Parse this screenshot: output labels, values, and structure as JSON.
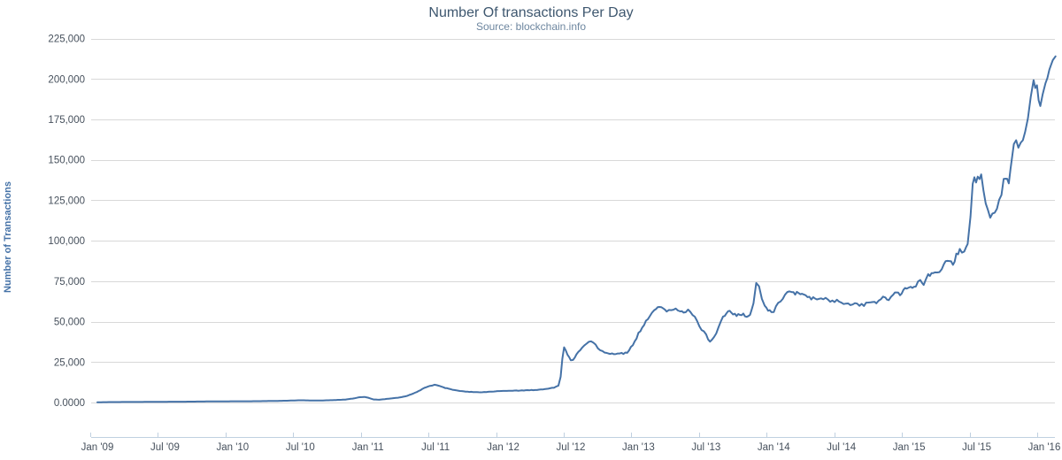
{
  "colors": {
    "background": "#FFFFFF",
    "title": "#3E576F",
    "subtitle": "#6D869F",
    "axis_labels": "#46505C",
    "y_axis_title": "#4572A7",
    "grid_line": "#D8D8D8",
    "axis_line": "#C0D0E0",
    "series_line": "#4572A7"
  },
  "chart_data": {
    "type": "line",
    "title": "Number Of transactions Per Day",
    "subtitle": "Source: blockchain.info",
    "xlabel": "",
    "ylabel": "Number of Transactions",
    "x_unit": "months since Jan 2009",
    "x_tick_labels": [
      "Jan '09",
      "Jul '09",
      "Jan '10",
      "Jul '10",
      "Jan '11",
      "Jul '11",
      "Jan '12",
      "Jul '12",
      "Jan '13",
      "Jul '13",
      "Jan '14",
      "Jul '14",
      "Jan '15",
      "Jul '15",
      "Jan '16"
    ],
    "x_tick_months": [
      0,
      6,
      12,
      18,
      24,
      30,
      36,
      42,
      48,
      54,
      60,
      66,
      72,
      78,
      84
    ],
    "y_ticks": [
      0,
      25000,
      50000,
      75000,
      100000,
      125000,
      150000,
      175000,
      200000,
      225000
    ],
    "y_tick_labels": [
      "0.0000",
      "25,000",
      "50,000",
      "75,000",
      "100,000",
      "125,000",
      "150,000",
      "175,000",
      "200,000",
      "225,000"
    ],
    "ylim": [
      0,
      225000
    ],
    "grid": "horizontal-only",
    "legend": "none",
    "series": [
      {
        "name": "Number of transactions per day",
        "color": "#4572A7",
        "points": [
          [
            0,
            150
          ],
          [
            1,
            250
          ],
          [
            2,
            300
          ],
          [
            3,
            320
          ],
          [
            4,
            350
          ],
          [
            5,
            400
          ],
          [
            6,
            450
          ],
          [
            7,
            500
          ],
          [
            8,
            520
          ],
          [
            9,
            600
          ],
          [
            10,
            650
          ],
          [
            11,
            700
          ],
          [
            12,
            750
          ],
          [
            13,
            760
          ],
          [
            14,
            800
          ],
          [
            15,
            900
          ],
          [
            16,
            1000
          ],
          [
            17,
            1150
          ],
          [
            18,
            1400
          ],
          [
            19,
            1250
          ],
          [
            20,
            1250
          ],
          [
            21,
            1500
          ],
          [
            22,
            1800
          ],
          [
            22.8,
            2600
          ],
          [
            23.3,
            3300
          ],
          [
            23.7,
            3400
          ],
          [
            24,
            3000
          ],
          [
            24.5,
            1900
          ],
          [
            25,
            1700
          ],
          [
            25.5,
            2100
          ],
          [
            26,
            2500
          ],
          [
            26.5,
            2800
          ],
          [
            27,
            3300
          ],
          [
            27.5,
            4200
          ],
          [
            28,
            5500
          ],
          [
            28.5,
            7000
          ],
          [
            29,
            9000
          ],
          [
            29.5,
            10300
          ],
          [
            29.9,
            10900
          ],
          [
            30.3,
            10300
          ],
          [
            30.7,
            9300
          ],
          [
            31,
            8800
          ],
          [
            31.5,
            8000
          ],
          [
            32,
            7400
          ],
          [
            32.5,
            6900
          ],
          [
            33,
            6600
          ],
          [
            33.5,
            6400
          ],
          [
            34,
            6300
          ],
          [
            34.5,
            6500
          ],
          [
            35,
            6800
          ],
          [
            35.5,
            7000
          ],
          [
            36,
            7100
          ],
          [
            36.5,
            7200
          ],
          [
            37,
            7300
          ],
          [
            37.5,
            7400
          ],
          [
            38,
            7500
          ],
          [
            38.5,
            7650
          ],
          [
            39,
            7800
          ],
          [
            39.5,
            8100
          ],
          [
            40,
            8500
          ],
          [
            40.5,
            9200
          ],
          [
            40.9,
            10500
          ],
          [
            41.1,
            16000
          ],
          [
            41.25,
            27000
          ],
          [
            41.4,
            34500
          ],
          [
            41.7,
            30000
          ],
          [
            42,
            26500
          ],
          [
            42.2,
            26000
          ],
          [
            42.5,
            29500
          ],
          [
            43,
            33500
          ],
          [
            43.4,
            36500
          ],
          [
            43.8,
            38000
          ],
          [
            44.2,
            35500
          ],
          [
            44.6,
            32500
          ],
          [
            45,
            31000
          ],
          [
            45.5,
            30000
          ],
          [
            46,
            29800
          ],
          [
            46.5,
            30300
          ],
          [
            47,
            30800
          ],
          [
            47.5,
            35500
          ],
          [
            48,
            42500
          ],
          [
            48.5,
            48500
          ],
          [
            49,
            53500
          ],
          [
            49.4,
            57500
          ],
          [
            49.85,
            60000
          ],
          [
            50.2,
            58200
          ],
          [
            50.5,
            55500
          ],
          [
            50.9,
            57200
          ],
          [
            51.3,
            58000
          ],
          [
            51.7,
            57000
          ],
          [
            52,
            56200
          ],
          [
            52.4,
            56800
          ],
          [
            52.8,
            54500
          ],
          [
            53.2,
            50000
          ],
          [
            53.6,
            45500
          ],
          [
            54,
            41500
          ],
          [
            54.35,
            37500
          ],
          [
            54.7,
            40000
          ],
          [
            55.1,
            46500
          ],
          [
            55.5,
            52500
          ],
          [
            55.8,
            55800
          ],
          [
            56.1,
            56300
          ],
          [
            56.4,
            54800
          ],
          [
            56.7,
            53800
          ],
          [
            57,
            55000
          ],
          [
            57.3,
            54200
          ],
          [
            57.6,
            52800
          ],
          [
            57.9,
            53800
          ],
          [
            58.2,
            62000
          ],
          [
            58.45,
            72800
          ],
          [
            58.7,
            71500
          ],
          [
            58.95,
            64000
          ],
          [
            59.2,
            59000
          ],
          [
            59.5,
            56800
          ],
          [
            59.8,
            56000
          ],
          [
            60,
            56500
          ],
          [
            60.4,
            61500
          ],
          [
            60.8,
            64500
          ],
          [
            61.2,
            67500
          ],
          [
            61.6,
            69200
          ],
          [
            61.9,
            67000
          ],
          [
            62.2,
            68500
          ],
          [
            62.5,
            67000
          ],
          [
            63,
            65500
          ],
          [
            63.5,
            64200
          ],
          [
            64,
            63800
          ],
          [
            64.4,
            64800
          ],
          [
            64.8,
            63200
          ],
          [
            65.2,
            62500
          ],
          [
            65.6,
            63300
          ],
          [
            66,
            62300
          ],
          [
            66.4,
            61200
          ],
          [
            66.8,
            60300
          ],
          [
            67.2,
            60800
          ],
          [
            67.6,
            59800
          ],
          [
            68,
            60500
          ],
          [
            68.4,
            62000
          ],
          [
            68.8,
            62800
          ],
          [
            69.1,
            62200
          ],
          [
            69.5,
            64200
          ],
          [
            69.9,
            64800
          ],
          [
            70.2,
            63800
          ],
          [
            70.6,
            66500
          ],
          [
            70.9,
            68000
          ],
          [
            71.2,
            67200
          ],
          [
            71.5,
            69000
          ],
          [
            71.8,
            70500
          ],
          [
            72,
            71800
          ],
          [
            72.3,
            70300
          ],
          [
            72.6,
            72500
          ],
          [
            73,
            75000
          ],
          [
            73.3,
            73800
          ],
          [
            73.7,
            78500
          ],
          [
            74,
            79500
          ],
          [
            74.3,
            81500
          ],
          [
            74.7,
            79800
          ],
          [
            75.1,
            85000
          ],
          [
            75.4,
            87500
          ],
          [
            75.9,
            85500
          ],
          [
            76.2,
            91000
          ],
          [
            76.5,
            94500
          ],
          [
            76.9,
            92500
          ],
          [
            77.2,
            97500
          ],
          [
            77.45,
            115000
          ],
          [
            77.65,
            135000
          ],
          [
            77.8,
            139500
          ],
          [
            77.95,
            137500
          ],
          [
            78.1,
            141000
          ],
          [
            78.25,
            136500
          ],
          [
            78.4,
            140000
          ],
          [
            78.6,
            131000
          ],
          [
            78.8,
            122500
          ],
          [
            79,
            118000
          ],
          [
            79.2,
            116000
          ],
          [
            79.4,
            117500
          ],
          [
            79.6,
            115800
          ],
          [
            79.8,
            119500
          ],
          [
            80,
            124000
          ],
          [
            80.2,
            128500
          ],
          [
            80.4,
            136500
          ],
          [
            80.55,
            139500
          ],
          [
            80.7,
            137000
          ],
          [
            80.85,
            134500
          ],
          [
            81,
            143000
          ],
          [
            81.15,
            152000
          ],
          [
            81.3,
            158500
          ],
          [
            81.5,
            160500
          ],
          [
            81.7,
            158800
          ],
          [
            81.9,
            159500
          ],
          [
            82.1,
            161000
          ],
          [
            82.3,
            165500
          ],
          [
            82.55,
            174000
          ],
          [
            82.8,
            188000
          ],
          [
            83.05,
            200500
          ],
          [
            83.2,
            193000
          ],
          [
            83.35,
            194500
          ],
          [
            83.5,
            187500
          ],
          [
            83.65,
            182000
          ],
          [
            83.85,
            189500
          ],
          [
            84.1,
            197000
          ],
          [
            84.45,
            205000
          ],
          [
            84.75,
            210500
          ],
          [
            85,
            214000
          ]
        ]
      }
    ]
  }
}
